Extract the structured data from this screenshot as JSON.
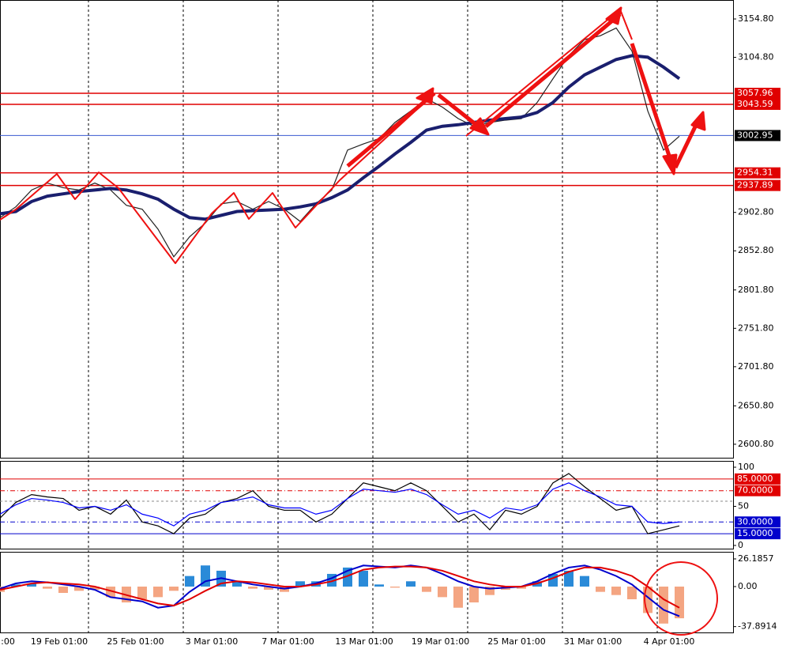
{
  "chart_data": [
    {
      "type": "line",
      "ylim": [
        2582.2,
        3179.5
      ],
      "yticks": [
        {
          "value": 3154.8,
          "label": "3154.80"
        },
        {
          "value": 3104.8,
          "label": "3104.80"
        },
        {
          "value": 2902.8,
          "label": "2902.80"
        },
        {
          "value": 2852.8,
          "label": "2852.80"
        },
        {
          "value": 2801.8,
          "label": "2801.80"
        },
        {
          "value": 2751.8,
          "label": "2751.80"
        },
        {
          "value": 2701.8,
          "label": "2701.80"
        },
        {
          "value": 2650.8,
          "label": "2650.80"
        },
        {
          "value": 2600.8,
          "label": "2600.80"
        }
      ],
      "levels": [
        {
          "value": 3057.96,
          "color": "#e00000"
        },
        {
          "value": 3043.59,
          "color": "#e00000"
        },
        {
          "value": 3002.95,
          "color": "#000000"
        },
        {
          "value": 2954.31,
          "color": "#e00000"
        },
        {
          "value": 2937.89,
          "color": "#e00000"
        }
      ],
      "series": [
        {
          "color": "#222222",
          "values": [
            2896,
            2910,
            2932,
            2941,
            2935,
            2932,
            2941,
            2932,
            2912,
            2907,
            2881,
            2845,
            2871,
            2889,
            2914,
            2917,
            2907,
            2917,
            2907,
            2891,
            2914,
            2932,
            2984,
            2992,
            2999,
            3020,
            3035,
            3051,
            3040,
            3025,
            3015,
            3020,
            3023,
            3025,
            3046,
            3077,
            3107,
            3128,
            3133,
            3143,
            3113,
            3035,
            2984,
            3002
          ]
        },
        {
          "color": "#1a1f6e",
          "values": [
            2901,
            2904,
            2917,
            2924,
            2927,
            2930,
            2932,
            2934,
            2932,
            2927,
            2920,
            2907,
            2896,
            2894,
            2899,
            2904,
            2905,
            2906,
            2907,
            2910,
            2914,
            2922,
            2932,
            2948,
            2963,
            2979,
            2994,
            3010,
            3015,
            3017,
            3020,
            3023,
            3025,
            3027,
            3033,
            3046,
            3066,
            3082,
            3092,
            3102,
            3107,
            3105,
            3092,
            3077
          ]
        }
      ]
    },
    {
      "type": "line",
      "ylim": [
        -5.1,
        108.1
      ],
      "yticks": [
        100,
        50,
        0
      ],
      "levels": [
        {
          "value": 85,
          "label": "85.0000",
          "color": "#e00000"
        },
        {
          "value": 70,
          "label": "70.0000",
          "color": "#e00000"
        },
        {
          "value": 30,
          "label": "30.0000",
          "color": "#0000cc"
        },
        {
          "value": 15,
          "label": "15.0000",
          "color": "#0000cc"
        }
      ],
      "series": [
        {
          "color": "#000000",
          "values": [
            35,
            55,
            65,
            62,
            60,
            45,
            50,
            40,
            58,
            30,
            25,
            15,
            35,
            40,
            55,
            60,
            70,
            50,
            45,
            45,
            30,
            40,
            60,
            80,
            75,
            70,
            80,
            70,
            50,
            30,
            40,
            20,
            45,
            40,
            50,
            80,
            92,
            75,
            60,
            45,
            50,
            15,
            20,
            25
          ]
        },
        {
          "color": "#0000ff",
          "values": [
            40,
            52,
            60,
            58,
            55,
            48,
            50,
            45,
            52,
            40,
            35,
            25,
            40,
            45,
            55,
            58,
            62,
            52,
            48,
            48,
            40,
            45,
            60,
            72,
            70,
            68,
            72,
            65,
            52,
            40,
            45,
            35,
            48,
            45,
            52,
            72,
            80,
            70,
            62,
            52,
            50,
            30,
            28,
            30
          ]
        }
      ]
    },
    {
      "type": "bar",
      "ylim": [
        -43.4,
        32.9
      ],
      "yticks": [
        26.1857,
        {
          "value": 0,
          "label": "0.00"
        },
        -37.8914
      ],
      "colors": [
        "#2a8ad8",
        "#f4a582"
      ],
      "values": [
        -5,
        2,
        3,
        -2,
        -6,
        -4,
        -3,
        -10,
        -15,
        -12,
        -10,
        -4,
        10,
        20,
        15,
        5,
        -2,
        -3,
        -5,
        5,
        5,
        12,
        18,
        15,
        2,
        -1,
        5,
        -5,
        -10,
        -20,
        -15,
        -8,
        -3,
        -2,
        5,
        12,
        15,
        10,
        -5,
        -8,
        -12,
        -25,
        -35,
        -30
      ],
      "series": [
        {
          "color": "#0000cc",
          "values": [
            -2,
            3,
            5,
            4,
            2,
            0,
            -3,
            -10,
            -12,
            -14,
            -20,
            -18,
            -5,
            5,
            8,
            5,
            2,
            0,
            -2,
            0,
            3,
            8,
            15,
            20,
            19,
            18,
            20,
            18,
            12,
            5,
            0,
            -2,
            -1,
            0,
            5,
            12,
            18,
            20,
            16,
            10,
            2,
            -10,
            -22,
            -28
          ]
        },
        {
          "color": "#e00000",
          "values": [
            -3,
            0,
            3,
            4,
            3,
            2,
            0,
            -4,
            -8,
            -12,
            -16,
            -18,
            -12,
            -4,
            3,
            5,
            4,
            2,
            0,
            0,
            2,
            5,
            10,
            16,
            18,
            19,
            19,
            18,
            15,
            10,
            5,
            2,
            0,
            0,
            3,
            8,
            14,
            18,
            18,
            15,
            10,
            0,
            -12,
            -20
          ]
        }
      ],
      "x_labels": [
        ":00",
        "19 Feb 01:00",
        "25 Feb 01:00",
        "3 Mar 01:00",
        "7 Mar 01:00",
        "13 Mar 01:00",
        "19 Mar 01:00",
        "25 Mar 01:00",
        "31 Mar 01:00",
        "4 Apr 01:00"
      ]
    }
  ]
}
